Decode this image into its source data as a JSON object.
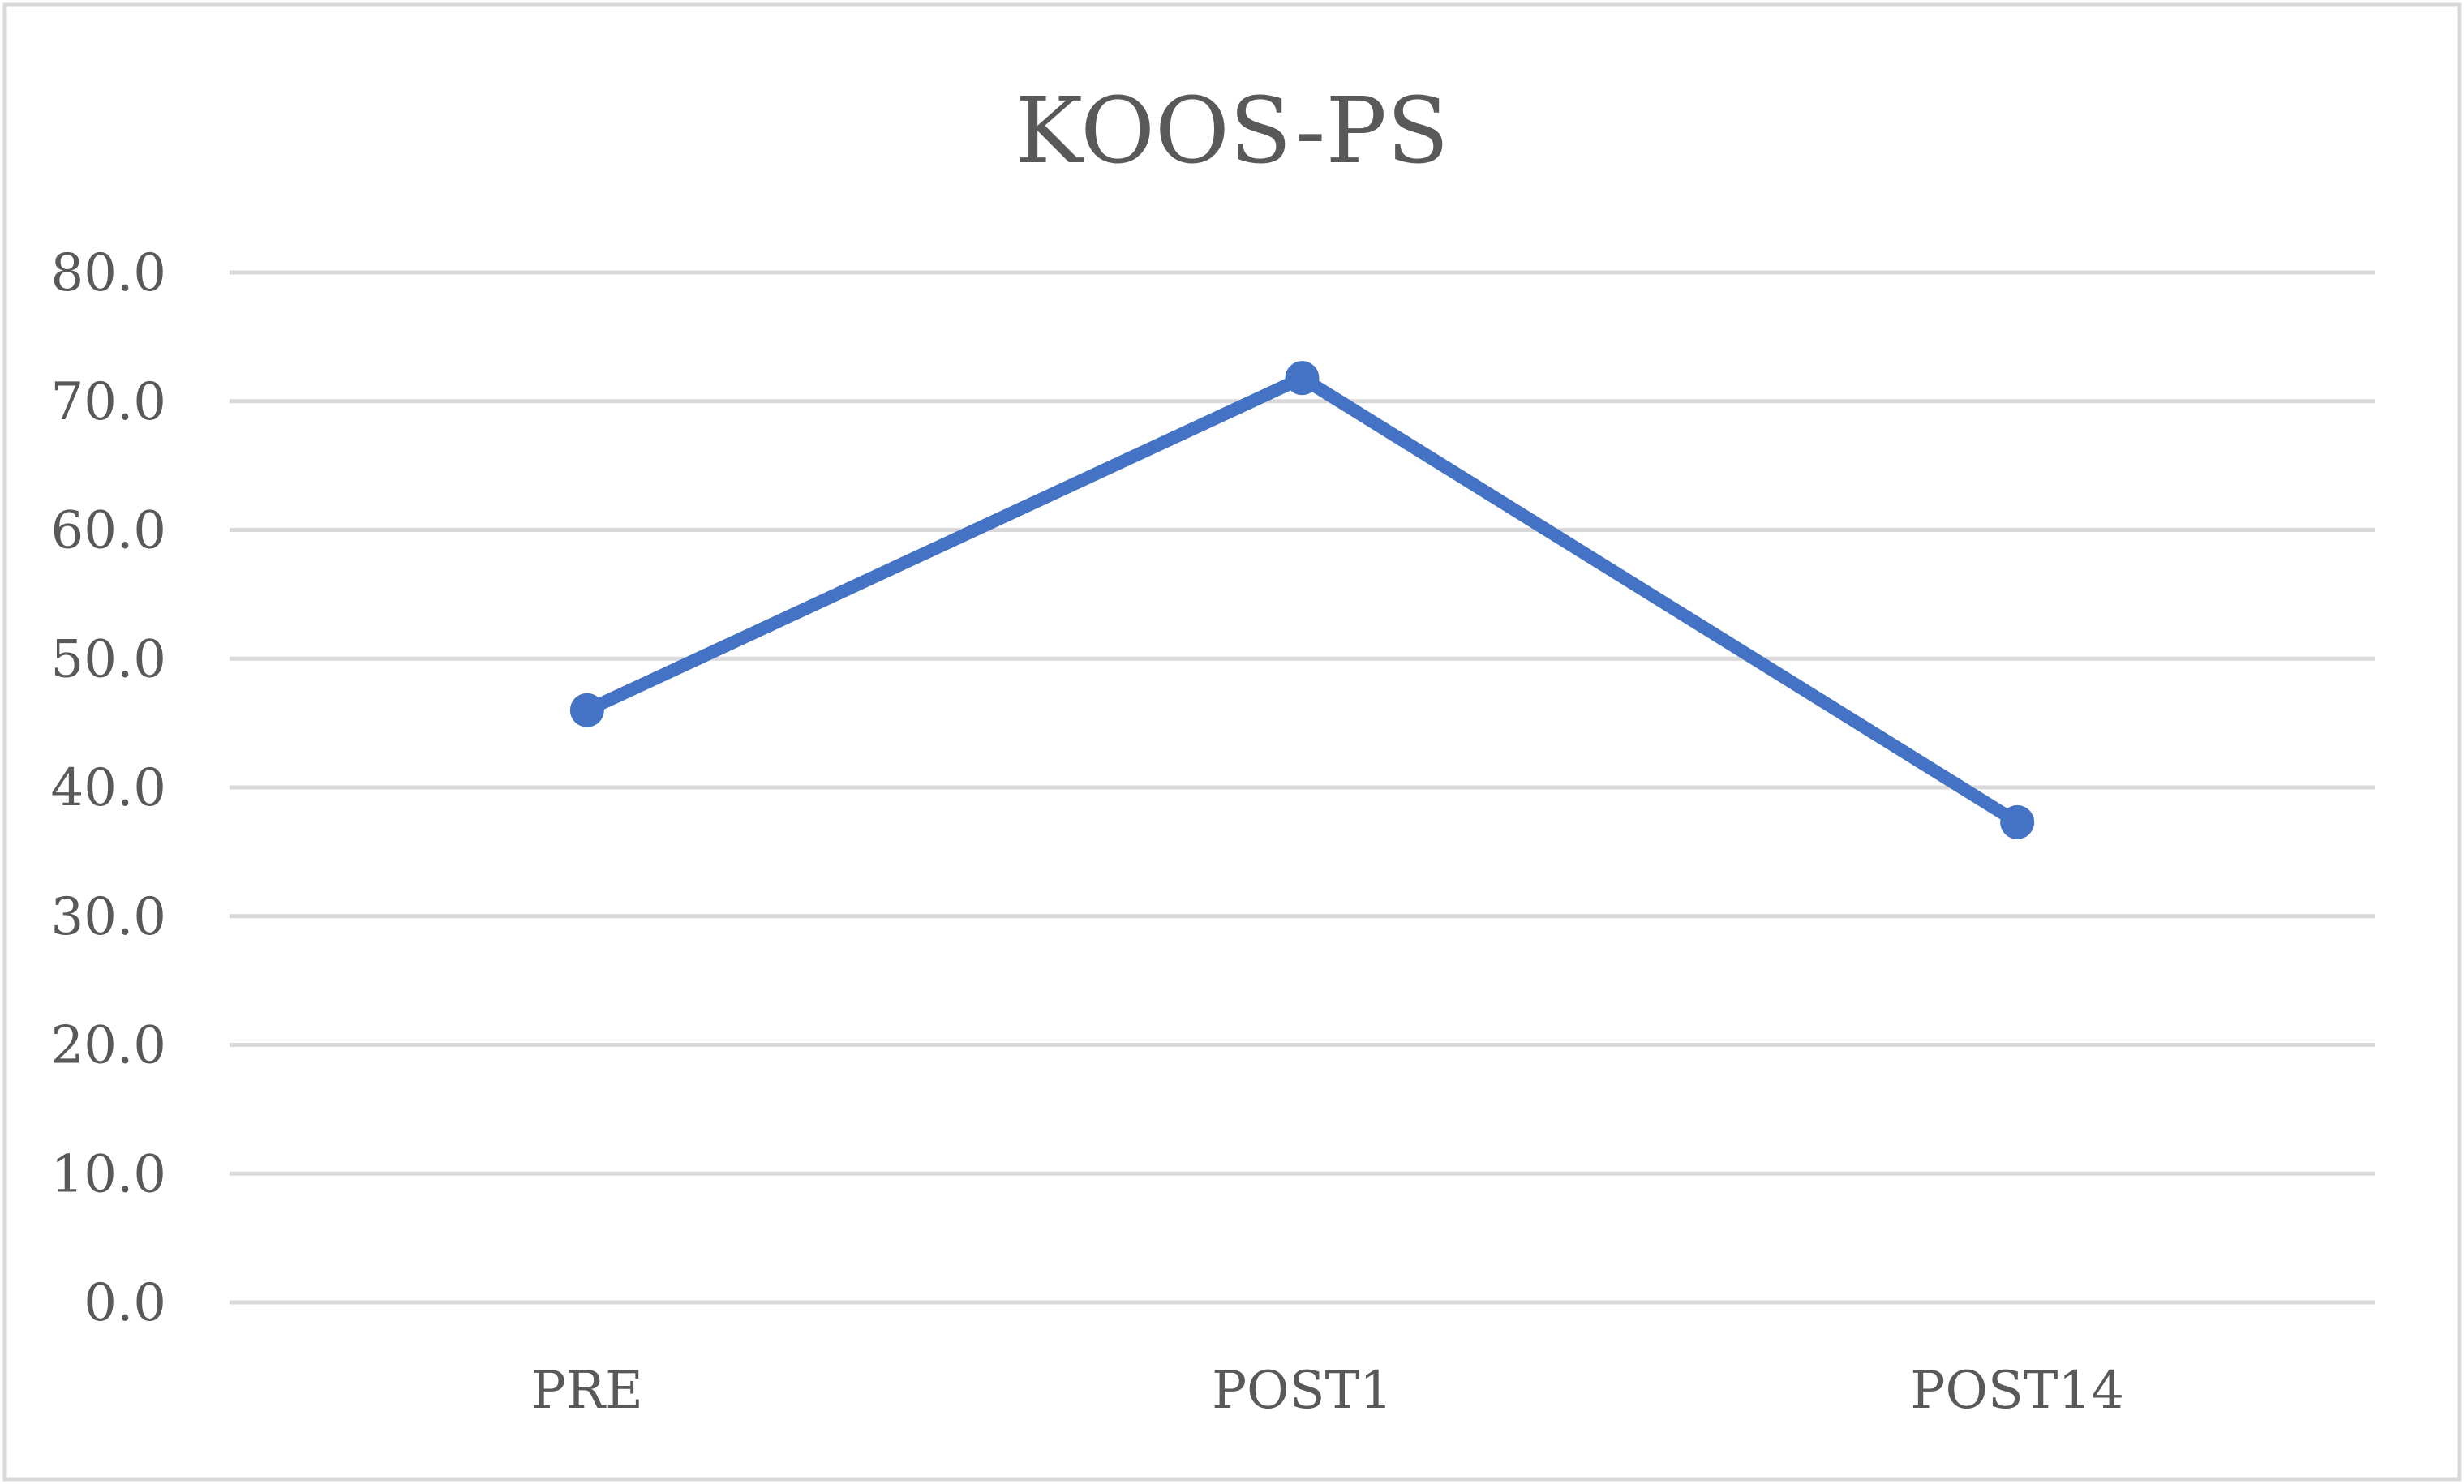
{
  "chart_data": {
    "type": "line",
    "title": "KOOS-PS",
    "xlabel": "",
    "ylabel": "",
    "categories": [
      "PRE",
      "POST1",
      "POST14"
    ],
    "series": [
      {
        "values": [
          46.0,
          71.8,
          37.3
        ]
      }
    ],
    "ylim": [
      0,
      80
    ],
    "y_ticks": [
      "0.0",
      "10.0",
      "20.0",
      "30.0",
      "40.0",
      "50.0",
      "60.0",
      "70.0",
      "80.0"
    ],
    "grid": true,
    "legend": "none",
    "colors": {
      "series": "#4472c4",
      "grid": "#d9d9d9",
      "text": "#595959",
      "border": "#d9d9d9"
    }
  }
}
